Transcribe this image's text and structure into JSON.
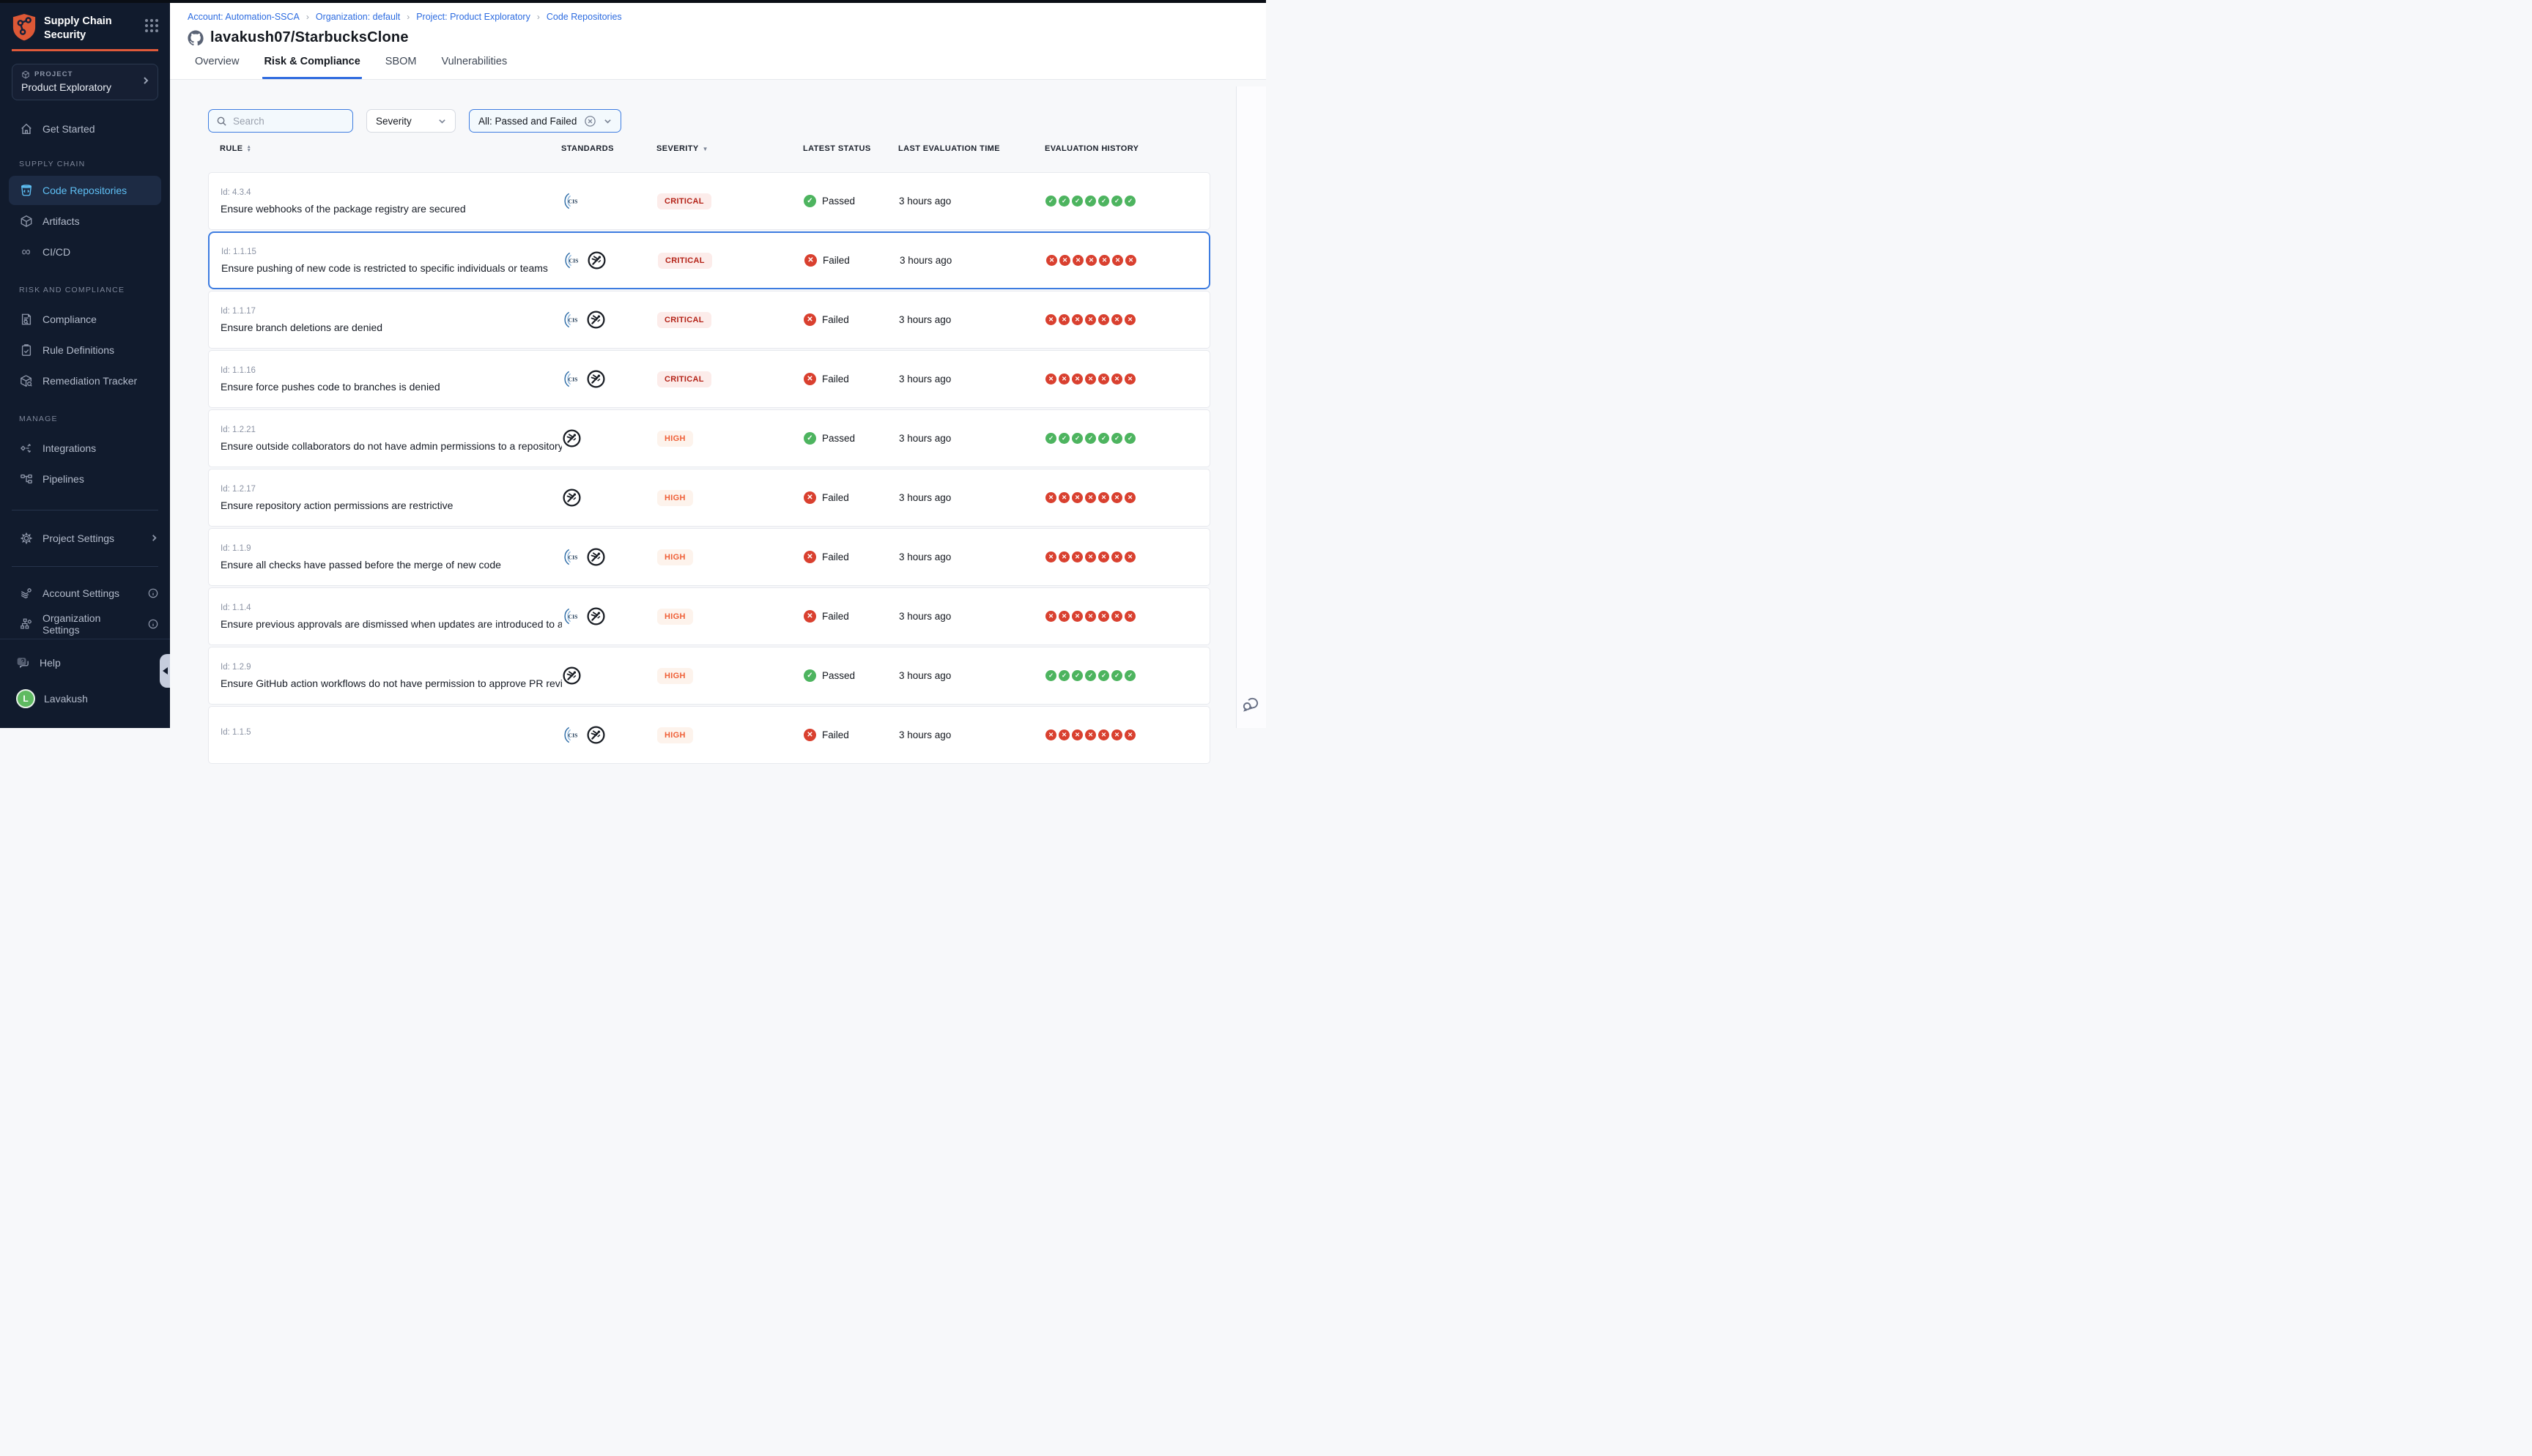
{
  "sidebar": {
    "logo": {
      "line1": "Supply Chain",
      "line2": "Security"
    },
    "project": {
      "label": "PROJECT",
      "name": "Product Exploratory"
    },
    "headings": {
      "supply_chain": "SUPPLY CHAIN",
      "risk": "RISK AND COMPLIANCE",
      "manage": "MANAGE"
    },
    "items": {
      "get_started": "Get Started",
      "code_repositories": "Code Repositories",
      "artifacts": "Artifacts",
      "cicd": "CI/CD",
      "compliance": "Compliance",
      "rule_definitions": "Rule Definitions",
      "remediation_tracker": "Remediation Tracker",
      "integrations": "Integrations",
      "pipelines": "Pipelines",
      "project_settings": "Project Settings",
      "account_settings": "Account Settings",
      "organization_settings": "Organization Settings",
      "help": "Help"
    },
    "user": {
      "name": "Lavakush",
      "initial": "L"
    }
  },
  "header": {
    "breadcrumbs": [
      "Account: Automation-SSCA",
      "Organization: default",
      "Project: Product Exploratory",
      "Code Repositories"
    ],
    "title": "lavakush07/StarbucksClone",
    "tabs": [
      "Overview",
      "Risk & Compliance",
      "SBOM",
      "Vulnerabilities"
    ],
    "active_tab": "Risk & Compliance"
  },
  "filters": {
    "search_placeholder": "Search",
    "severity": "Severity",
    "status": "All: Passed and Failed"
  },
  "table": {
    "columns": [
      "RULE",
      "STANDARDS",
      "SEVERITY",
      "LATEST STATUS",
      "LAST EVALUATION TIME",
      "EVALUATION HISTORY"
    ],
    "rows": [
      {
        "id": "Id: 4.3.4",
        "rule": "Ensure webhooks of the package registry are secured",
        "standards": [
          "cis"
        ],
        "severity": "CRITICAL",
        "status": "Passed",
        "time": "3 hours ago",
        "history": {
          "result": "pass",
          "count": 7
        },
        "selected": false
      },
      {
        "id": "Id: 1.1.15",
        "rule": "Ensure pushing of new code is restricted to specific individuals or teams",
        "standards": [
          "cis",
          "owasp"
        ],
        "severity": "CRITICAL",
        "status": "Failed",
        "time": "3 hours ago",
        "history": {
          "result": "fail",
          "count": 7
        },
        "selected": true
      },
      {
        "id": "Id: 1.1.17",
        "rule": "Ensure branch deletions are denied",
        "standards": [
          "cis",
          "owasp"
        ],
        "severity": "CRITICAL",
        "status": "Failed",
        "time": "3 hours ago",
        "history": {
          "result": "fail",
          "count": 7
        },
        "selected": false
      },
      {
        "id": "Id: 1.1.16",
        "rule": "Ensure force pushes code to branches is denied",
        "standards": [
          "cis",
          "owasp"
        ],
        "severity": "CRITICAL",
        "status": "Failed",
        "time": "3 hours ago",
        "history": {
          "result": "fail",
          "count": 7
        },
        "selected": false
      },
      {
        "id": "Id: 1.2.21",
        "rule": "Ensure outside collaborators do not have admin permissions to a repository",
        "standards": [
          "owasp"
        ],
        "severity": "HIGH",
        "status": "Passed",
        "time": "3 hours ago",
        "history": {
          "result": "pass",
          "count": 7
        },
        "selected": false
      },
      {
        "id": "Id: 1.2.17",
        "rule": "Ensure repository action permissions are restrictive",
        "standards": [
          "owasp"
        ],
        "severity": "HIGH",
        "status": "Failed",
        "time": "3 hours ago",
        "history": {
          "result": "fail",
          "count": 7
        },
        "selected": false
      },
      {
        "id": "Id: 1.1.9",
        "rule": "Ensure all checks have passed before the merge of new code",
        "standards": [
          "cis",
          "owasp"
        ],
        "severity": "HIGH",
        "status": "Failed",
        "time": "3 hours ago",
        "history": {
          "result": "fail",
          "count": 7
        },
        "selected": false
      },
      {
        "id": "Id: 1.1.4",
        "rule": "Ensure previous approvals are dismissed when updates are introduced to a cod...",
        "standards": [
          "cis",
          "owasp"
        ],
        "severity": "HIGH",
        "status": "Failed",
        "time": "3 hours ago",
        "history": {
          "result": "fail",
          "count": 7
        },
        "selected": false
      },
      {
        "id": "Id: 1.2.9",
        "rule": "Ensure GitHub action workflows do not have permission to approve PR reviews ...",
        "standards": [
          "owasp"
        ],
        "severity": "HIGH",
        "status": "Passed",
        "time": "3 hours ago",
        "history": {
          "result": "pass",
          "count": 7
        },
        "selected": false
      },
      {
        "id": "Id: 1.1.5",
        "rule": "",
        "standards": [
          "cis",
          "owasp"
        ],
        "severity": "HIGH",
        "status": "Failed",
        "time": "3 hours ago",
        "history": {
          "result": "fail",
          "count": 7
        },
        "selected": false
      }
    ]
  },
  "colors": {
    "accent_blue": "#2f6bdf",
    "sidebar_bg": "#111b2d",
    "sidebar_active_text": "#5fc0f5",
    "brand_orange": "#e05a3a",
    "critical_text": "#b42318",
    "critical_bg": "#fcecea",
    "high_text": "#ef6038",
    "high_bg": "#fdf3ec",
    "pass_green": "#4db45f",
    "fail_red": "#d9402f",
    "avatar_green": "#5fba61"
  }
}
